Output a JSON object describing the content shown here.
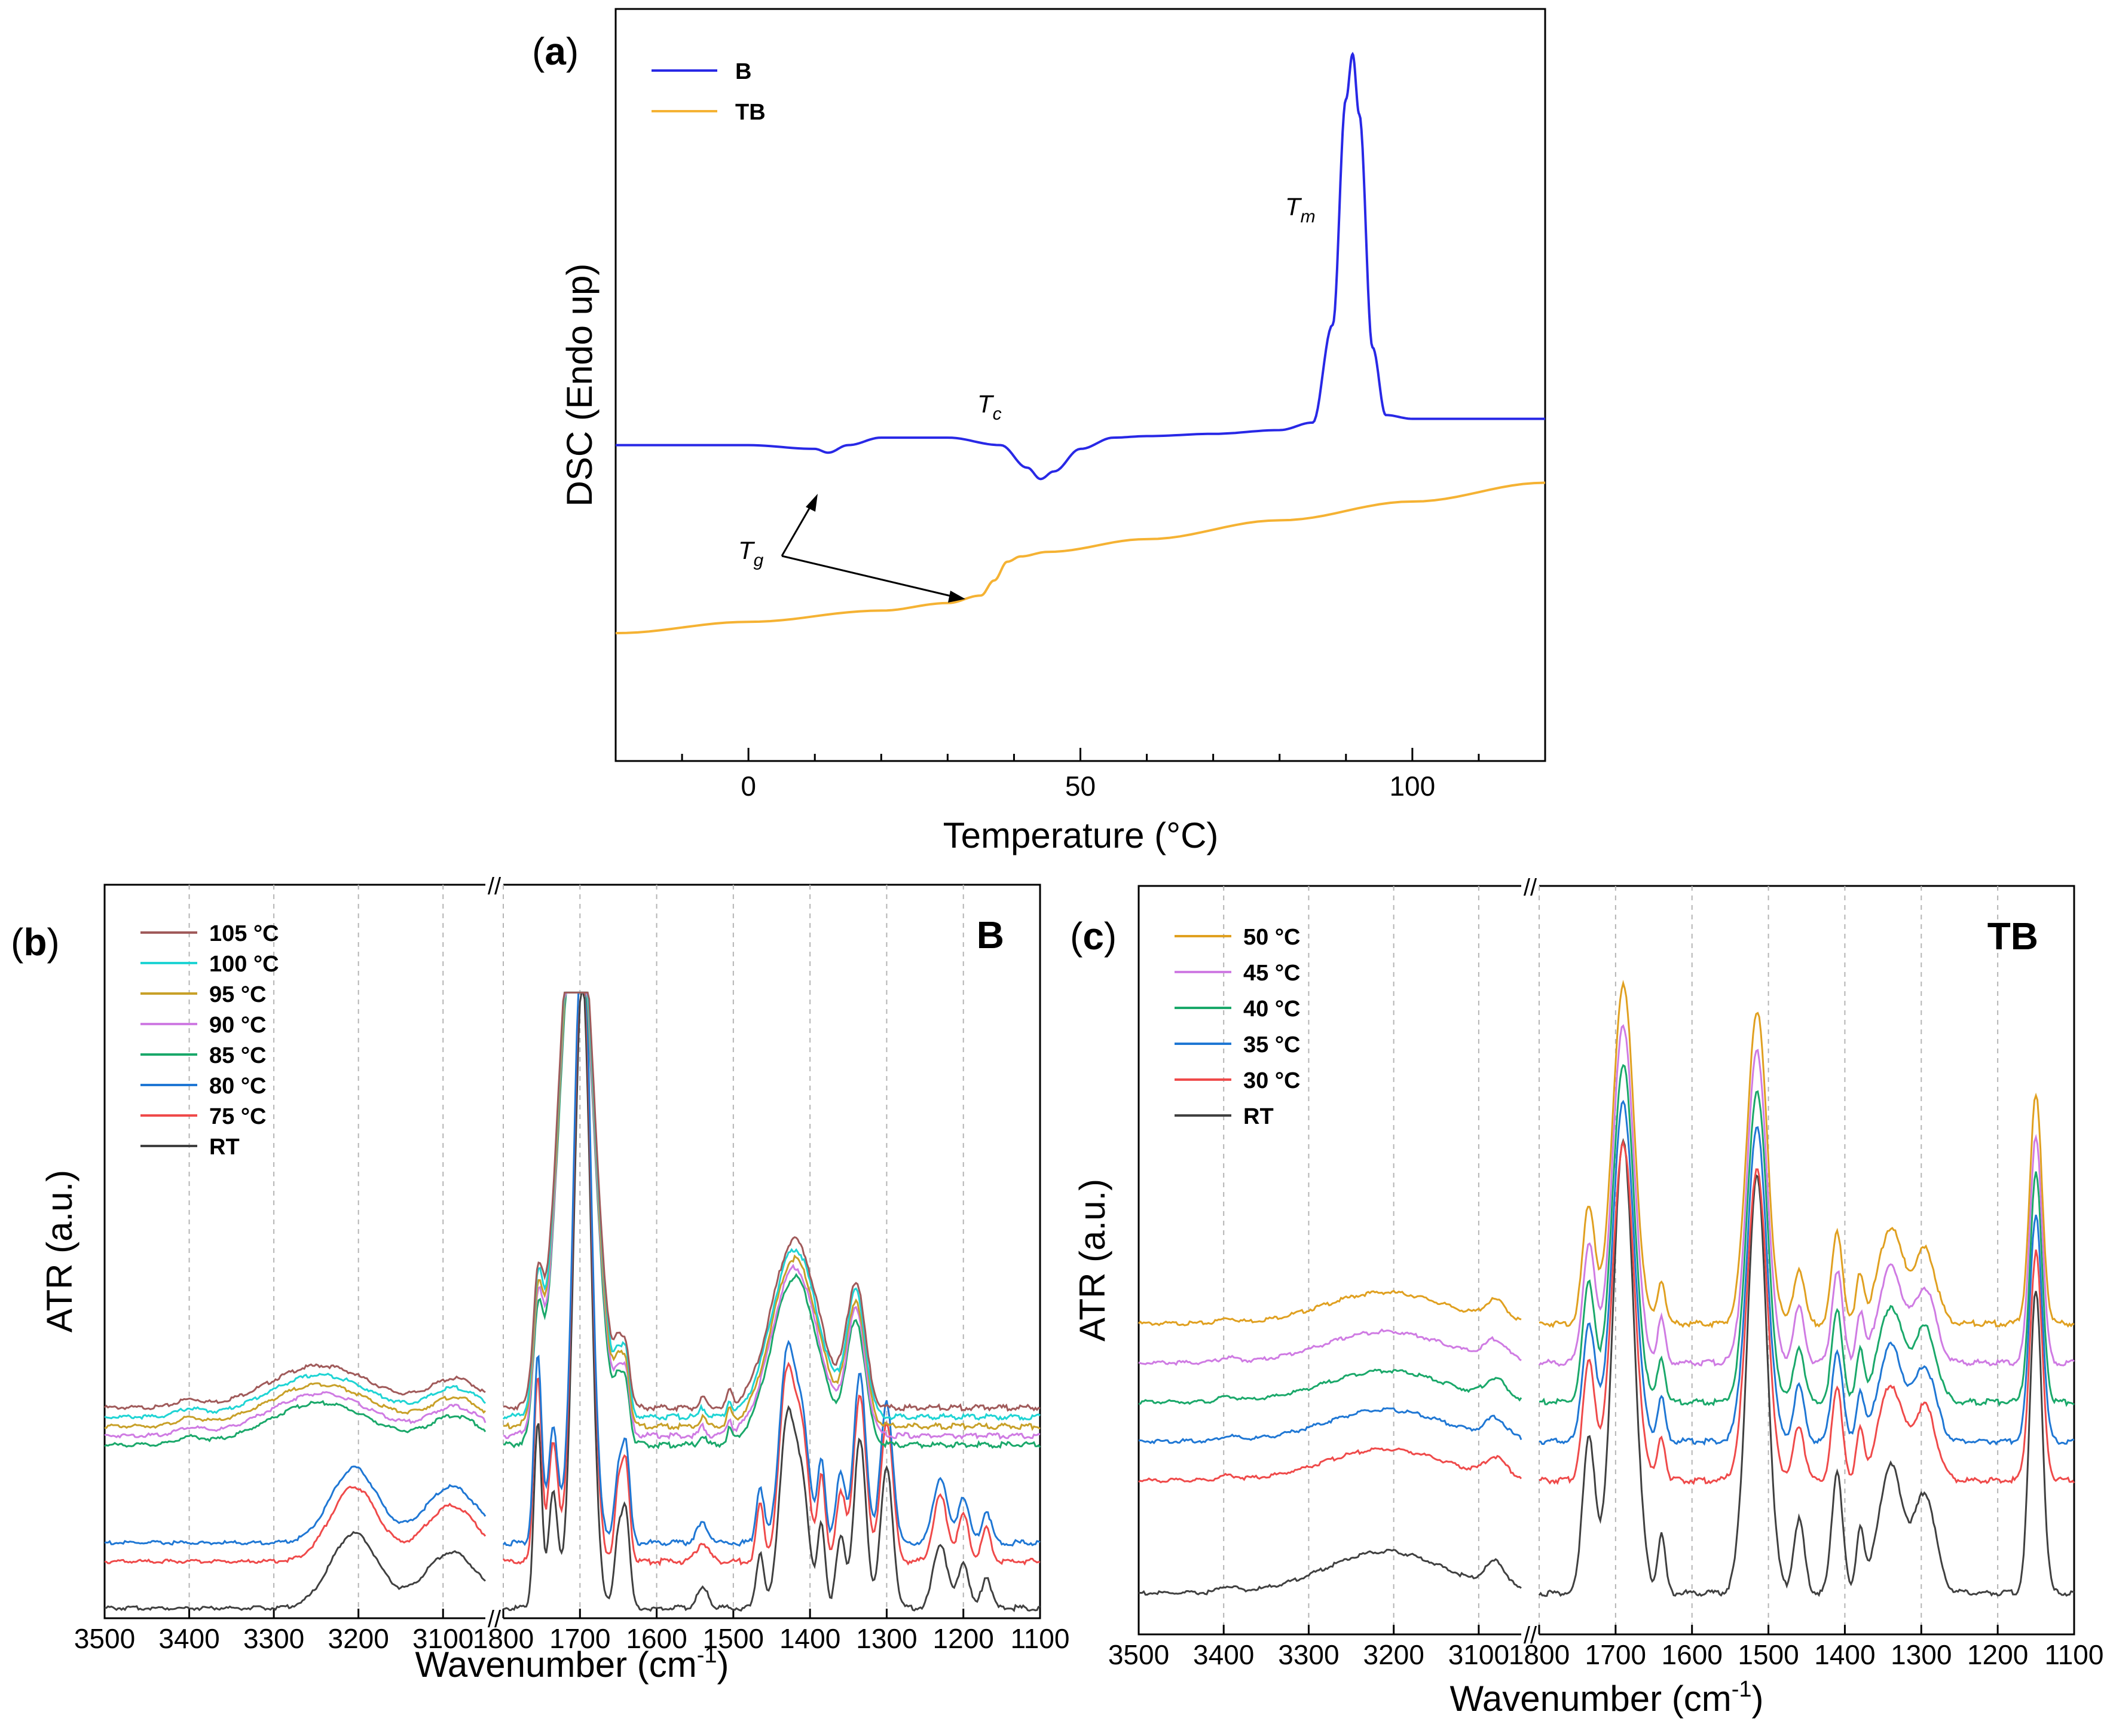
{
  "colors": {
    "B": "#2828e6",
    "TB": "#f5b233",
    "105": "#a05a5a",
    "100": "#1fd4d4",
    "95": "#c8a028",
    "90": "#cf7be3",
    "85": "#1aa86a",
    "80": "#1f77d4",
    "75": "#ef4a4a",
    "RT": "#404040",
    "50": "#e0a020",
    "45": "#cf7be3",
    "40": "#1aa86a",
    "35": "#1f77d4",
    "30": "#ef4a4a"
  },
  "labels": {
    "a": "a",
    "b": "b",
    "c": "c",
    "paren_open": "(",
    "paren_close": ")",
    "tg": "T",
    "tg_sub": "g",
    "tc": "T",
    "tc_sub": "c",
    "tm": "T",
    "tm_sub": "m",
    "axis_break": "//"
  },
  "chart_data": [
    {
      "id": "a",
      "type": "line",
      "xlabel": "Temperature (°C)",
      "ylabel": "DSC (Endo up)",
      "xlim": [
        -20,
        120
      ],
      "xticks": [
        0,
        50,
        100
      ],
      "ylim": [
        0,
        1
      ],
      "legend": {
        "placement": "top-left",
        "entries": [
          "B",
          "TB"
        ]
      },
      "series": [
        {
          "name": "B",
          "x": [
            -20,
            0,
            10,
            12,
            15,
            20,
            30,
            38,
            42,
            44,
            46,
            50,
            55,
            60,
            70,
            80,
            85,
            88,
            90,
            91,
            92,
            94,
            96,
            100,
            110,
            120
          ],
          "y": [
            0.42,
            0.42,
            0.415,
            0.41,
            0.42,
            0.43,
            0.43,
            0.42,
            0.39,
            0.375,
            0.385,
            0.415,
            0.43,
            0.432,
            0.435,
            0.44,
            0.45,
            0.58,
            0.88,
            0.94,
            0.86,
            0.55,
            0.46,
            0.455,
            0.455,
            0.455
          ]
        },
        {
          "name": "TB",
          "x": [
            -20,
            0,
            20,
            30,
            35,
            37,
            39,
            41,
            45,
            60,
            80,
            100,
            120
          ],
          "y": [
            0.17,
            0.185,
            0.2,
            0.21,
            0.22,
            0.24,
            0.265,
            0.272,
            0.278,
            0.295,
            0.32,
            0.345,
            0.37
          ]
        }
      ],
      "annotations": [
        "Tm",
        "Tc",
        "Tg"
      ]
    },
    {
      "id": "b",
      "type": "line",
      "title": "B",
      "xlabel": "Wavenumber (cm",
      "xlabel_sup": "-1",
      "xlabel_end": ")",
      "ylabel": "ATR (a.u.)",
      "xticks_left": [
        3500,
        3400,
        3300,
        3200,
        3100
      ],
      "xticks_right": [
        1800,
        1700,
        1600,
        1500,
        1400,
        1300,
        1200,
        1100
      ],
      "legend": {
        "placement": "top-left",
        "entries": [
          "105 °C",
          "100 °C",
          "95 °C",
          "90 °C",
          "85 °C",
          "80 °C",
          "75 °C",
          "RT"
        ],
        "keys": [
          "105",
          "100",
          "95",
          "90",
          "85",
          "80",
          "75",
          "RT"
        ]
      },
      "series_offsets": [
        0.43,
        0.41,
        0.39,
        0.37,
        0.35,
        0.14,
        0.1,
        0.0
      ],
      "series_modes": [
        "amorph",
        "amorph",
        "amorph",
        "amorph",
        "amorph",
        "cryst",
        "cryst",
        "cryst"
      ],
      "left_peaks_amorph": [
        [
          3245,
          60,
          0.09
        ],
        [
          3085,
          30,
          0.06
        ],
        [
          3400,
          15,
          0.015
        ]
      ],
      "left_peaks_cryst": [
        [
          3205,
          28,
          0.16
        ],
        [
          3090,
          32,
          0.12
        ]
      ],
      "right_peaks_amorph": [
        [
          1755,
          6,
          0.22
        ],
        [
          1705,
          22,
          1.18
        ],
        [
          1650,
          5,
          0.09
        ],
        [
          1640,
          5,
          0.12
        ],
        [
          1420,
          30,
          0.36
        ],
        [
          1340,
          12,
          0.26
        ],
        [
          1540,
          4,
          0.02
        ],
        [
          1505,
          3,
          0.03
        ]
      ],
      "right_peaks_cryst": [
        [
          1755,
          5,
          0.4
        ],
        [
          1735,
          6,
          0.25
        ],
        [
          1697,
          11,
          1.35
        ],
        [
          1650,
          5,
          0.15
        ],
        [
          1640,
          5,
          0.2
        ],
        [
          1465,
          5,
          0.12
        ],
        [
          1430,
          10,
          0.4
        ],
        [
          1410,
          9,
          0.25
        ],
        [
          1385,
          5,
          0.18
        ],
        [
          1360,
          6,
          0.15
        ],
        [
          1335,
          8,
          0.36
        ],
        [
          1300,
          8,
          0.3
        ],
        [
          1230,
          9,
          0.14
        ],
        [
          1200,
          7,
          0.1
        ],
        [
          1170,
          6,
          0.07
        ],
        [
          1540,
          8,
          0.04
        ]
      ]
    },
    {
      "id": "c",
      "type": "line",
      "title": "TB",
      "xlabel": "Wavenumber (cm",
      "xlabel_sup": "-1",
      "xlabel_end": ")",
      "ylabel": "ATR (a.u.)",
      "xticks_left": [
        3500,
        3400,
        3300,
        3200,
        3100
      ],
      "xticks_right": [
        1800,
        1700,
        1600,
        1500,
        1400,
        1300,
        1200,
        1100
      ],
      "legend": {
        "placement": "top-left",
        "entries": [
          "50 °C",
          "45 °C",
          "40 °C",
          "35 °C",
          "30 °C",
          "RT"
        ],
        "keys": [
          "50",
          "45",
          "40",
          "35",
          "30",
          "RT"
        ]
      },
      "series_offsets": [
        0.55,
        0.47,
        0.39,
        0.31,
        0.23,
        0.0
      ],
      "left_peaks": [
        [
          3210,
          70,
          0.085
        ],
        [
          3080,
          12,
          0.05
        ],
        [
          3395,
          10,
          0.012
        ]
      ],
      "right_peaks": [
        [
          1735,
          8,
          0.32
        ],
        [
          1690,
          14,
          0.92
        ],
        [
          1640,
          5,
          0.12
        ],
        [
          1515,
          13,
          0.85
        ],
        [
          1460,
          7,
          0.15
        ],
        [
          1410,
          7,
          0.25
        ],
        [
          1380,
          5,
          0.13
        ],
        [
          1340,
          16,
          0.26
        ],
        [
          1295,
          14,
          0.2
        ],
        [
          1150,
          8,
          0.62
        ]
      ]
    }
  ]
}
